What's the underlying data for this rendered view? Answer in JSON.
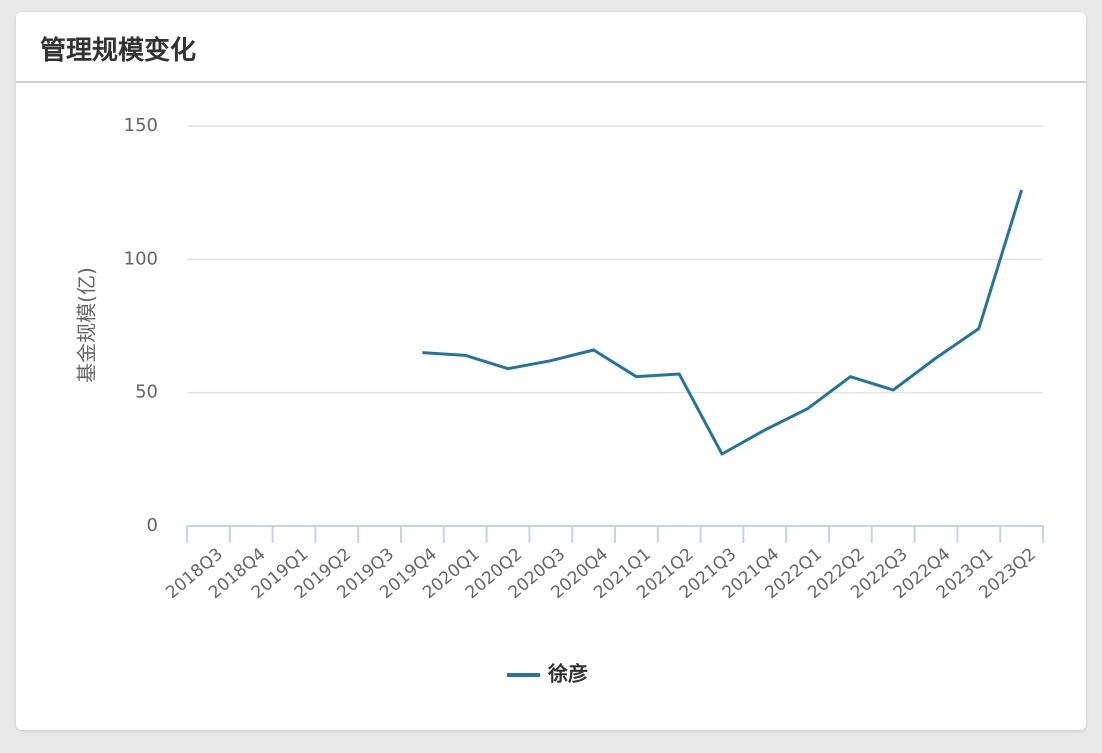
{
  "chart_data": {
    "type": "line",
    "title": "管理规模变化",
    "y_label": "基金规模(亿)",
    "categories": [
      "2018Q3",
      "2018Q4",
      "2019Q1",
      "2019Q2",
      "2019Q3",
      "2019Q4",
      "2020Q1",
      "2020Q2",
      "2020Q3",
      "2020Q4",
      "2021Q1",
      "2021Q2",
      "2021Q3",
      "2021Q4",
      "2022Q1",
      "2022Q2",
      "2022Q3",
      "2022Q4",
      "2023Q1",
      "2023Q2"
    ],
    "series": [
      {
        "name": "徐彦",
        "color": "#24749e",
        "values": [
          null,
          null,
          null,
          null,
          null,
          65,
          64,
          59,
          62,
          66,
          56,
          57,
          27,
          36,
          44,
          56,
          51,
          63,
          74,
          126
        ]
      }
    ],
    "ylim": [
      0,
      150
    ],
    "yticks": [
      0,
      50,
      100,
      150
    ],
    "grid": true
  }
}
